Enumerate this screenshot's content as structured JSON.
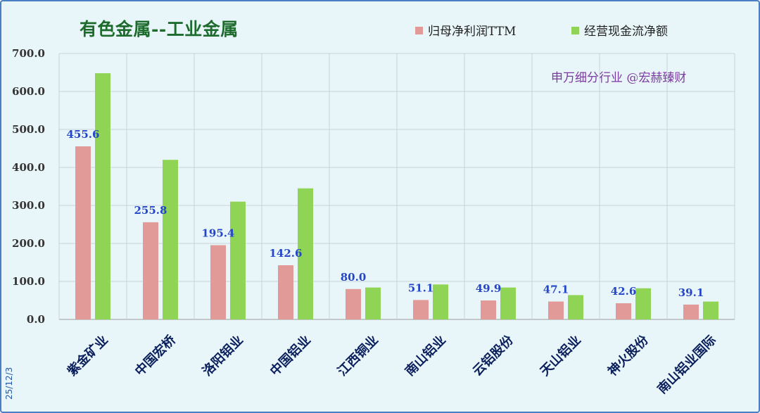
{
  "chart_data": {
    "type": "bar",
    "title": "有色金属--工业金属",
    "annotation": "申万细分行业 @宏赫臻财",
    "date_label": "25/12/3",
    "categories": [
      "紫金矿业",
      "中国宏桥",
      "洛阳钼业",
      "中国铝业",
      "江西铜业",
      "南山铝业",
      "云铝股份",
      "天山铝业",
      "神火股份",
      "南山铝业国际"
    ],
    "series": [
      {
        "name": "归母净利润TTM",
        "color": "#e29a98",
        "values": [
          455.6,
          255.8,
          195.4,
          142.6,
          80.0,
          51.1,
          49.9,
          47.1,
          42.6,
          39.1
        ],
        "data_labels": [
          "455.6",
          "255.8",
          "195.4",
          "142.6",
          "80.0",
          "51.1",
          "49.9",
          "47.1",
          "42.6",
          "39.1"
        ]
      },
      {
        "name": "经营现金流净额",
        "color": "#8fd454",
        "values": [
          648,
          420,
          310,
          345,
          84,
          92,
          84,
          64,
          82,
          47
        ]
      }
    ],
    "ylim": [
      0,
      700
    ],
    "yticks": [
      "0.0",
      "100.0",
      "200.0",
      "300.0",
      "400.0",
      "500.0",
      "600.0",
      "700.0"
    ],
    "grid": true,
    "legend_position": "top-right"
  }
}
